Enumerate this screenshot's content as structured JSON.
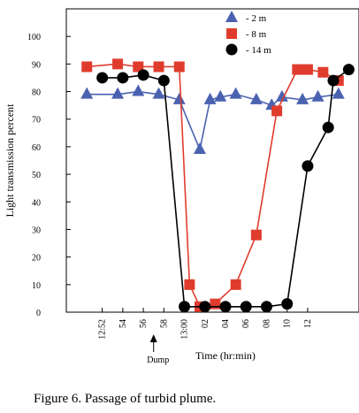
{
  "caption": "Figure 6.  Passage of turbid plume.",
  "chart_data": {
    "type": "line",
    "title": "",
    "xlabel": "Time (hr:min)",
    "ylabel": "Light transmission percent",
    "ylim": [
      0,
      110
    ],
    "yticks": [
      0,
      10,
      20,
      30,
      40,
      50,
      60,
      70,
      80,
      90,
      100
    ],
    "xtick_labels": [
      "12:52",
      "54",
      "56",
      "58",
      "13:00",
      "02",
      "04",
      "06",
      "08",
      "10",
      "12"
    ],
    "x_unit": "minutes after 12:00",
    "xlim": [
      48.5,
      77
    ],
    "xticks": [
      52,
      54,
      56,
      58,
      60,
      62,
      64,
      66,
      68,
      70,
      72
    ],
    "grid": false,
    "legend_position": "top-right",
    "annotations": [
      {
        "text": "Dump",
        "x": 57,
        "arrow": true
      }
    ],
    "series": [
      {
        "name": "- 2 m",
        "color": "#4a62b0",
        "marker": "triangle",
        "points": [
          [
            50.5,
            79
          ],
          [
            53.5,
            79
          ],
          [
            55.5,
            80
          ],
          [
            57.5,
            79
          ],
          [
            59.5,
            77
          ],
          [
            61.5,
            59
          ],
          [
            62.5,
            77
          ],
          [
            63.5,
            78
          ],
          [
            65,
            79
          ],
          [
            67,
            77
          ],
          [
            68.5,
            75
          ],
          [
            69.5,
            78
          ],
          [
            71.5,
            77
          ],
          [
            73,
            78
          ],
          [
            75,
            79
          ]
        ]
      },
      {
        "name": "- 8 m",
        "color": "#e03c2e",
        "marker": "square",
        "points": [
          [
            50.5,
            89
          ],
          [
            53.5,
            90
          ],
          [
            55.5,
            89
          ],
          [
            57.5,
            89
          ],
          [
            59.5,
            89
          ],
          [
            60.5,
            10
          ],
          [
            61.5,
            2
          ],
          [
            63,
            3
          ],
          [
            65,
            10
          ],
          [
            67,
            28
          ],
          [
            69,
            73
          ],
          [
            71,
            88
          ],
          [
            72,
            88
          ],
          [
            73.5,
            87
          ],
          [
            75,
            84
          ]
        ]
      },
      {
        "name": "- 14 m",
        "color": "#000000",
        "marker": "circle",
        "points": [
          [
            52,
            85
          ],
          [
            54,
            85
          ],
          [
            56,
            86
          ],
          [
            58,
            84
          ],
          [
            60,
            2
          ],
          [
            62,
            2
          ],
          [
            64,
            2
          ],
          [
            66,
            2
          ],
          [
            68,
            2
          ],
          [
            70,
            3
          ],
          [
            72,
            53
          ],
          [
            74,
            67
          ],
          [
            74.5,
            84
          ],
          [
            76,
            88
          ]
        ]
      }
    ]
  }
}
